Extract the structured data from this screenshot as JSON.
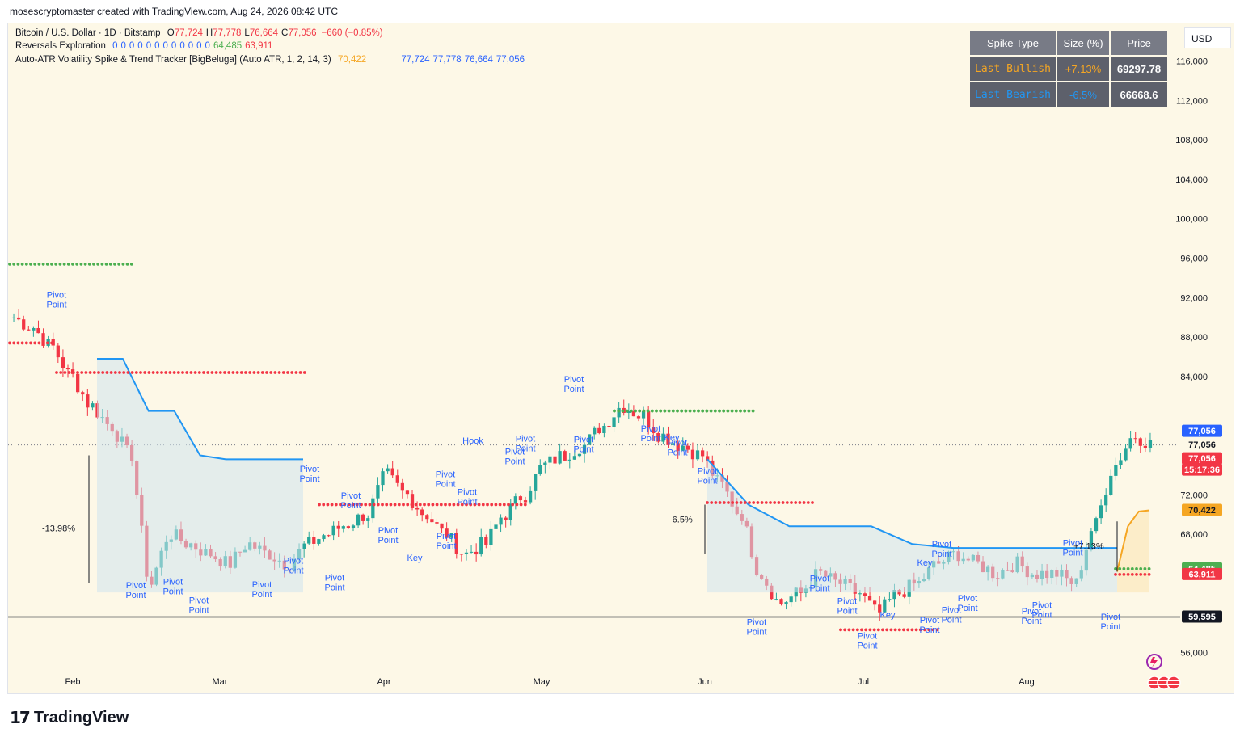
{
  "header": {
    "credit": "mosescryptomaster created with TradingView.com, Aug 24, 2026 08:42 UTC"
  },
  "legend": {
    "symbol": "Bitcoin / U.S. Dollar · 1D · Bitstamp",
    "ohlc": {
      "o_label": "O",
      "o": "77,724",
      "h_label": "H",
      "h": "77,778",
      "l_label": "L",
      "l": "76,664",
      "c_label": "C",
      "c": "77,056",
      "chg": "−660 (−0.85%)"
    },
    "reversals_title": "Reversals Exploration",
    "reversals_values": [
      "0",
      "0",
      "0",
      "0",
      "0",
      "0",
      "0",
      "0",
      "0",
      "0",
      "0",
      "0",
      "64,485",
      "63,911"
    ],
    "atr_title": "Auto-ATR Volatility Spike & Trend Tracker [BigBeluga] (Auto ATR, 1, 2, 14, 3)",
    "atr_values": [
      "70,422",
      "77,056",
      "77,724",
      "77,778",
      "76,664",
      "77,056"
    ]
  },
  "spike_table": {
    "headers": [
      "Spike Type",
      "Size (%)",
      "Price"
    ],
    "rows": [
      {
        "type": "Last Bullish",
        "size": "+7.13%",
        "price": "69297.78",
        "color": "#f5a623"
      },
      {
        "type": "Last Bearish",
        "size": "-6.5%",
        "price": "66668.6",
        "color": "#2196f3"
      }
    ]
  },
  "currency": "USD",
  "price_axis": {
    "ticks": [
      "116,000",
      "112,000",
      "108,000",
      "104,000",
      "100,000",
      "96,000",
      "92,000",
      "88,000",
      "84,000",
      "72,000",
      "68,000",
      "56,000"
    ],
    "labels": [
      {
        "text": "77,056",
        "bg": "#2962ff",
        "fg": "#ffffff"
      },
      {
        "text": "77,056",
        "bg": "#fdf8e7",
        "fg": "#131722"
      },
      {
        "text": "77,056",
        "bg": "#f23645",
        "fg": "#ffffff"
      },
      {
        "text": "15:17:36",
        "bg": "#f23645",
        "fg": "#ffffff"
      },
      {
        "text": "70,422",
        "bg": "#f5a623",
        "fg": "#131722"
      },
      {
        "text": "64,485",
        "bg": "#4caf50",
        "fg": "#ffffff"
      },
      {
        "text": "63,911",
        "bg": "#f23645",
        "fg": "#ffffff"
      },
      {
        "text": "59,595",
        "bg": "#131722",
        "fg": "#ffffff"
      }
    ]
  },
  "time_axis": [
    "Feb",
    "Mar",
    "Apr",
    "May",
    "Jun",
    "Jul",
    "Aug"
  ],
  "annotations": {
    "spike_down_1": "-13.98%",
    "spike_down_2": "-6.5%",
    "spike_up": "+7.13%",
    "pivot": "Pivot\nPoint",
    "hook": "Hook",
    "key": "Key"
  },
  "colors": {
    "up": "#26a69a",
    "down": "#f23645",
    "background": "#fdf8e7",
    "trend_line": "#2196f3",
    "bull_trend": "#f5a623",
    "support_dots": "#4caf50",
    "resist_dots": "#f23645"
  },
  "chart_data": {
    "type": "candlestick",
    "symbol": "BTCUSD",
    "interval": "1D",
    "y_axis_range": [
      53000,
      119000
    ],
    "current_price": 77056,
    "support_line": 59595,
    "trend_tracker_segments": [
      {
        "dir": "bear",
        "values": [
          85800,
          85800,
          80500,
          80500,
          76000,
          75600,
          75600,
          75600,
          75600
        ]
      },
      {
        "dir": "bear",
        "values": [
          75600,
          71000,
          68800,
          68800,
          68800,
          67000,
          66600,
          66600,
          66600,
          66600,
          66600
        ]
      },
      {
        "dir": "bull",
        "values": [
          64200,
          68800,
          70300,
          70422
        ]
      }
    ],
    "months": [
      "Feb",
      "Mar",
      "Apr",
      "May",
      "Jun",
      "Jul",
      "Aug"
    ],
    "approx_closes": [
      90000,
      89000,
      87000,
      84000,
      81000,
      79000,
      76000,
      63000,
      68000,
      67000,
      66000,
      65000,
      67000,
      66000,
      65000,
      67000,
      68000,
      69000,
      70000,
      74000,
      72000,
      70000,
      68000,
      66000,
      67000,
      70000,
      72000,
      75000,
      76000,
      77000,
      79000,
      81000,
      80000,
      78000,
      77000,
      76000,
      73000,
      70000,
      64000,
      61000,
      62000,
      64000,
      63000,
      62000,
      60000,
      62000,
      63000,
      65000,
      66000,
      65000,
      64000,
      65000,
      64000,
      64000,
      63000,
      69000,
      75000,
      78000,
      77056
    ]
  }
}
